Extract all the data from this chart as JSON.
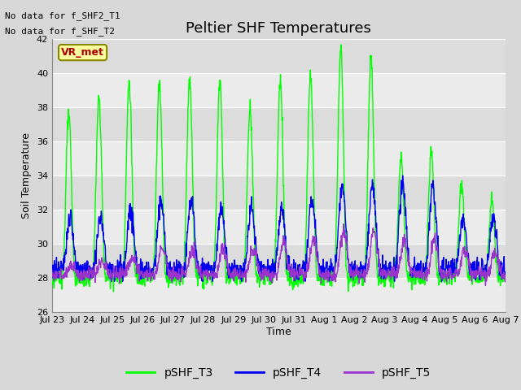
{
  "title": "Peltier SHF Temperatures",
  "xlabel": "Time",
  "ylabel": "Soil Temperature",
  "ylim": [
    26,
    42
  ],
  "yticks": [
    26,
    28,
    30,
    32,
    34,
    36,
    38,
    40,
    42
  ],
  "xtick_labels": [
    "Jul 23",
    "Jul 24",
    "Jul 25",
    "Jul 26",
    "Jul 27",
    "Jul 28",
    "Jul 29",
    "Jul 30",
    "Jul 31",
    "Aug 1",
    "Aug 2",
    "Aug 3",
    "Aug 4",
    "Aug 5",
    "Aug 6",
    "Aug 7"
  ],
  "no_data_text1": "No data for f_SHF2_T1",
  "no_data_text2": "No data for f_SHF_T2",
  "vr_met_label": "VR_met",
  "legend_labels": [
    "pSHF_T3",
    "pSHF_T4",
    "pSHF_T5"
  ],
  "line_colors": [
    "#00FF00",
    "#0000EE",
    "#9933CC"
  ],
  "fig_facecolor": "#D8D8D8",
  "plot_bg_color": "#E8E8E8",
  "band_color_light": "#EBEBEB",
  "band_color_dark": "#DCDCDC",
  "grid_color": "#CCCCCC",
  "title_fontsize": 13,
  "axis_label_fontsize": 9,
  "tick_fontsize": 8,
  "legend_fontsize": 10,
  "n_days": 15,
  "pts_per_day": 96
}
